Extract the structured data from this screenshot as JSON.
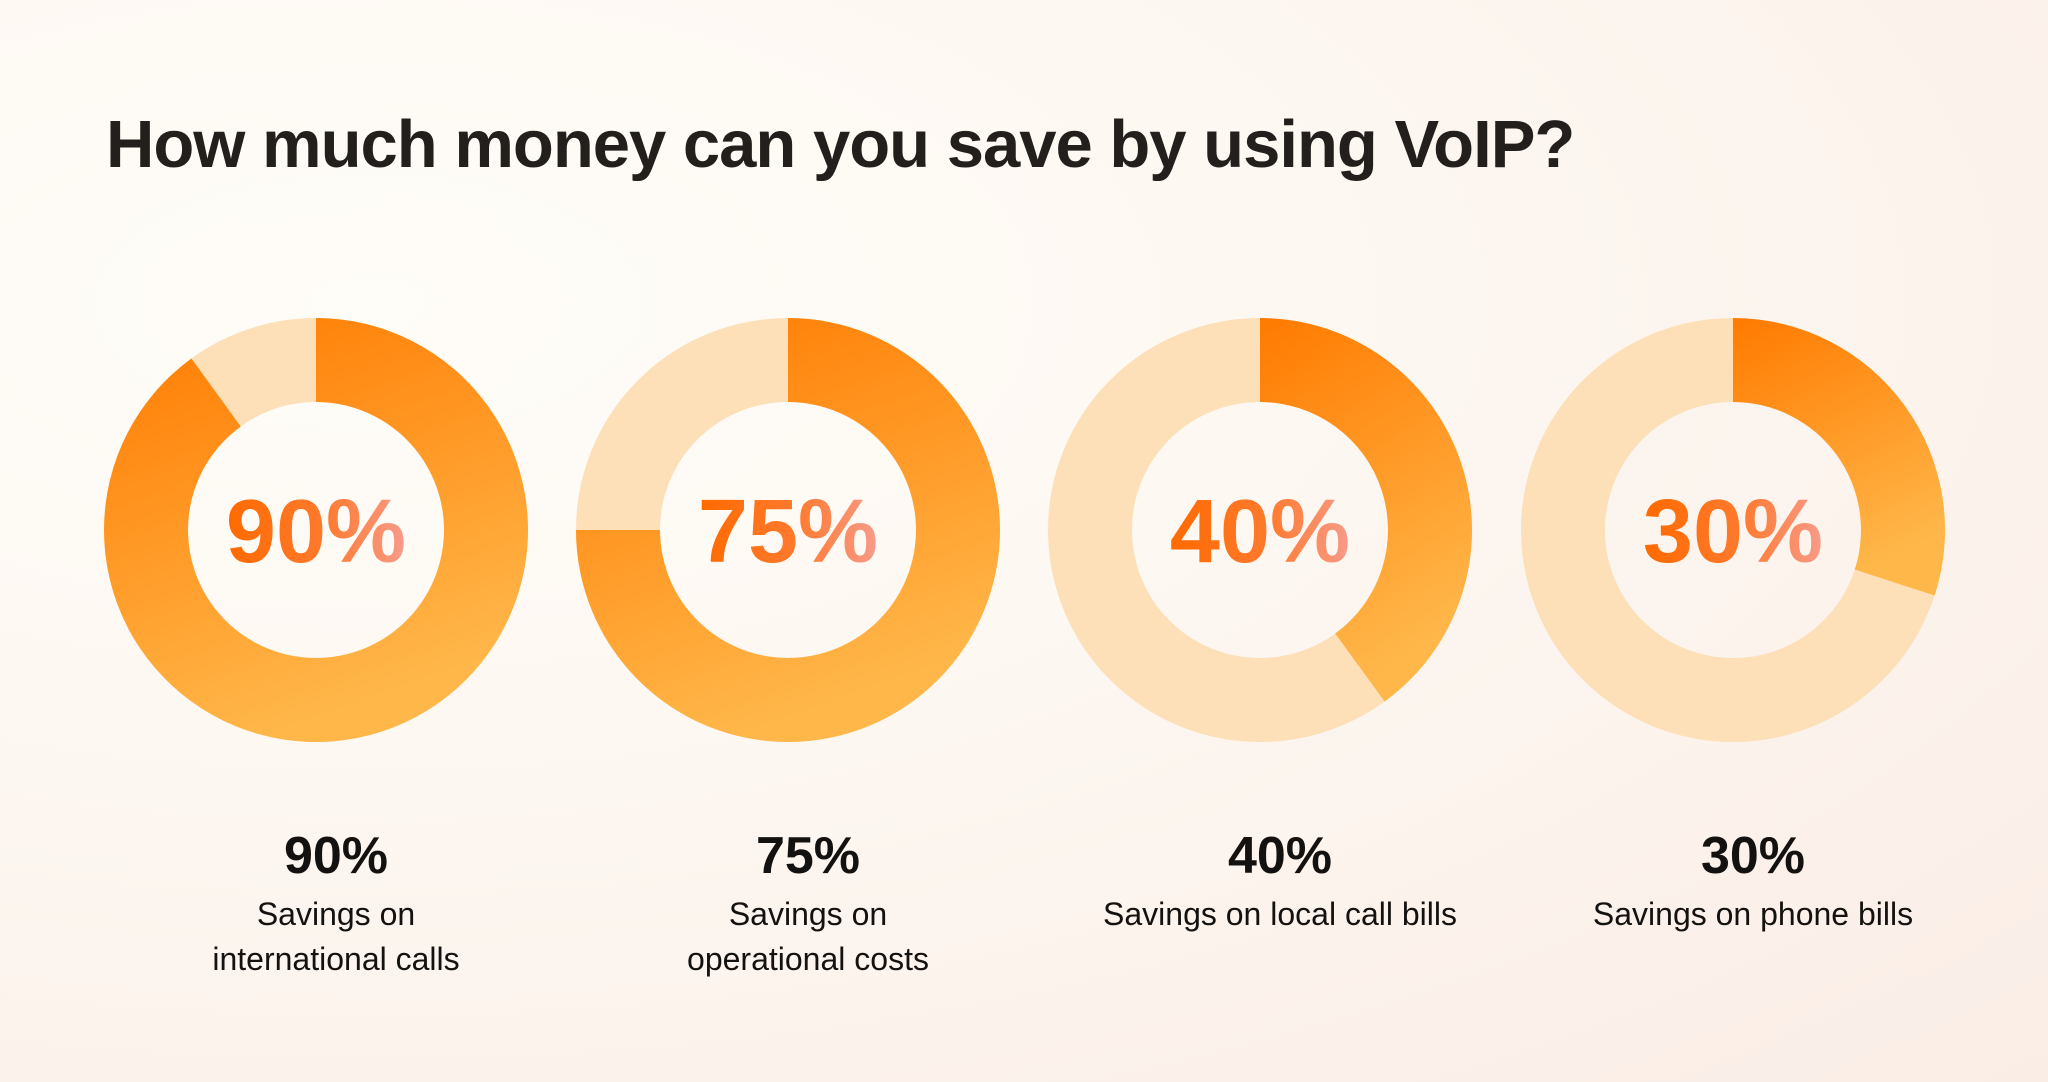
{
  "page": {
    "title": "How much money can you save by using VoIP?"
  },
  "colors": {
    "background": "#fdf7f1",
    "title": "#231f1c",
    "filled_start": "#ff7a00",
    "filled_end": "#ffb74a",
    "remainder": "#fde0b8",
    "center_text_start": "#ff6a00",
    "center_text_end": "#f79b8a",
    "caption": "#141210"
  },
  "chart_data": {
    "type": "pie",
    "variant": "donut",
    "title": "How much money can you save by using VoIP?",
    "unit": "%",
    "ylim": [
      0,
      100
    ],
    "categories": [
      "Savings on international calls",
      "Savings on operational costs",
      "Savings on local call bills",
      "Savings on phone bills"
    ],
    "values": [
      90,
      75,
      40,
      30
    ],
    "items": [
      {
        "value": 90,
        "display": "90%",
        "label_lines": [
          "Savings on",
          "international calls"
        ]
      },
      {
        "value": 75,
        "display": "75%",
        "label_lines": [
          "Savings on",
          "operational costs"
        ]
      },
      {
        "value": 40,
        "display": "40%",
        "label_lines": [
          "Savings on local call bills"
        ]
      },
      {
        "value": 30,
        "display": "30%",
        "label_lines": [
          "Savings on phone bills"
        ]
      }
    ]
  }
}
